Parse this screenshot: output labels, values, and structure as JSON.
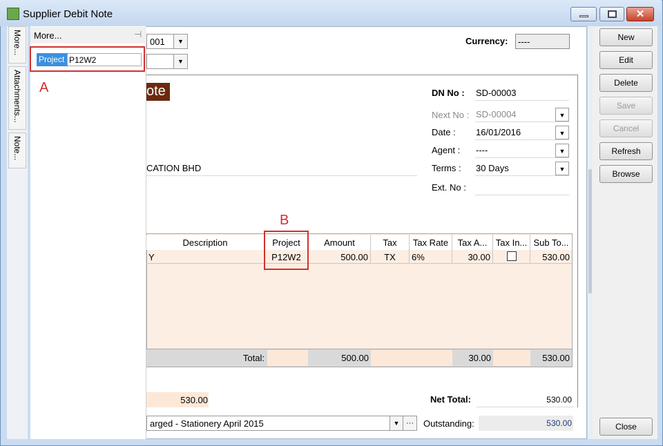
{
  "window": {
    "title": "Supplier Debit Note"
  },
  "side_tabs": [
    "More...",
    "Attachments...",
    "Note..."
  ],
  "more_panel": {
    "title": "More...",
    "field_label": "Project",
    "field_value": "P12W2"
  },
  "annotations": [
    "A",
    "B"
  ],
  "header": {
    "supplier_code": "001",
    "currency_label": "Currency:",
    "currency_value": "----",
    "doc_title": "ote",
    "supplier_name": "CATION BHD"
  },
  "doc_fields": [
    {
      "label": "DN No :",
      "value": "SD-00003"
    },
    {
      "label": "Next No :",
      "value": "SD-00004"
    },
    {
      "label": "Date :",
      "value": "16/01/2016"
    },
    {
      "label": "Agent :",
      "value": "----"
    },
    {
      "label": "Terms :",
      "value": "30 Days"
    },
    {
      "label": "Ext. No :"
    }
  ],
  "grid": {
    "columns": [
      "Description",
      "Project",
      "Amount",
      "Tax",
      "Tax Rate",
      "Tax A...",
      "Tax In...",
      "Sub To..."
    ],
    "rows": [
      {
        "description": "Y",
        "project": "P12W2",
        "amount": "500.00",
        "tax": "TX",
        "tax_rate": "6%",
        "tax_amount": "30.00",
        "sub_total": "530.00"
      }
    ],
    "total": {
      "label": "Total:",
      "amount": "500.00",
      "tax_amount": "30.00",
      "sub_total": "530.00"
    }
  },
  "footer": {
    "local_amount": "530.00",
    "net_total_label": "Net Total:",
    "net_total": "530.00",
    "description": "arged - Stationery April 2015",
    "outstanding_label": "Outstanding:",
    "outstanding": "530.00"
  },
  "buttons": [
    "New",
    "Edit",
    "Delete",
    "Save",
    "Cancel",
    "Refresh",
    "Browse",
    "Close"
  ]
}
